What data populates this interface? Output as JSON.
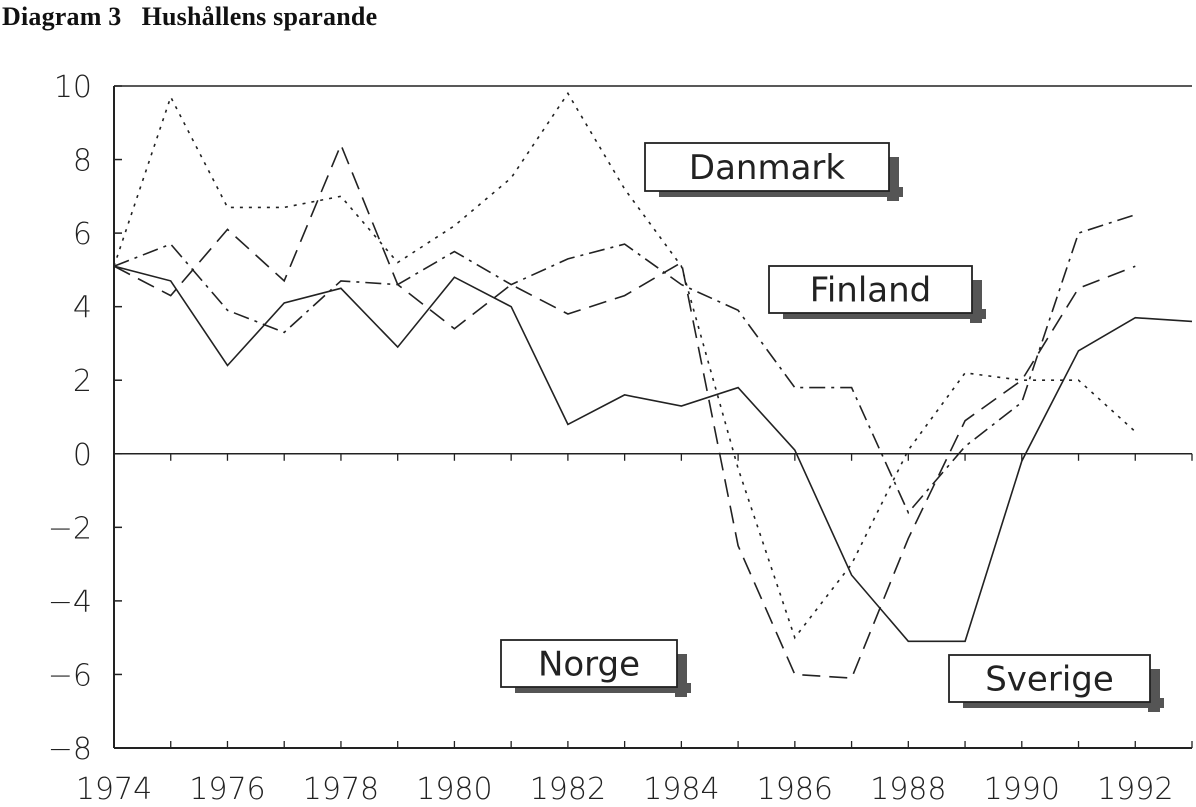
{
  "title": "Diagram 3   Hushållens sparande",
  "chart_data": {
    "type": "line",
    "title": "Diagram 3   Hushållens sparande",
    "xlabel": "",
    "ylabel": "",
    "x": [
      1974,
      1975,
      1976,
      1977,
      1978,
      1979,
      1980,
      1981,
      1982,
      1983,
      1984,
      1985,
      1986,
      1987,
      1988,
      1989,
      1990,
      1991,
      1992
    ],
    "xlim": [
      1974,
      1993
    ],
    "ylim": [
      -8,
      10
    ],
    "x_ticks": [
      "1974",
      "1976",
      "1978",
      "1980",
      "1982",
      "1984",
      "1986",
      "1988",
      "1990",
      "1992"
    ],
    "y_ticks": [
      "10",
      "8",
      "6",
      "4",
      "2",
      "0",
      "−2",
      "−4",
      "−6",
      "−8"
    ],
    "grid": false,
    "series": [
      {
        "name": "Norge",
        "style": "solid",
        "values": [
          5.1,
          4.7,
          2.4,
          4.1,
          4.5,
          2.9,
          4.8,
          4.0,
          0.8,
          1.6,
          1.3,
          1.8,
          0.1,
          -3.3,
          -5.1,
          -5.1,
          -0.2,
          2.8,
          3.7,
          3.6
        ],
        "x": [
          1974,
          1975,
          1976,
          1977,
          1978,
          1979,
          1980,
          1981,
          1982,
          1983,
          1984,
          1985,
          1986,
          1987,
          1988,
          1989,
          1990,
          1991,
          1992,
          1993
        ]
      },
      {
        "name": "Finland",
        "style": "dashed",
        "values": [
          5.1,
          4.3,
          6.1,
          4.7,
          8.4,
          4.6,
          3.4,
          4.6,
          3.8,
          4.3,
          5.2,
          -2.5,
          -6.0,
          -6.1,
          -2.3,
          0.9,
          2.0,
          4.5,
          5.1
        ],
        "x": [
          1974,
          1975,
          1976,
          1977,
          1978,
          1979,
          1980,
          1981,
          1982,
          1983,
          1984,
          1985,
          1986,
          1987,
          1988,
          1989,
          1990,
          1991,
          1992
        ]
      },
      {
        "name": "Danmark",
        "style": "dotted",
        "values": [
          5.1,
          9.7,
          6.7,
          6.7,
          7.0,
          5.2,
          6.2,
          7.5,
          9.8,
          7.2,
          5.1,
          -0.4,
          -5.0,
          -3.0,
          0.1,
          2.2,
          2.0,
          2.0,
          0.6
        ],
        "x": [
          1974,
          1975,
          1976,
          1977,
          1978,
          1979,
          1980,
          1981,
          1982,
          1983,
          1984,
          1985,
          1986,
          1987,
          1988,
          1989,
          1990,
          1991,
          1992
        ]
      },
      {
        "name": "Sverige",
        "style": "dashdot",
        "values": [
          5.1,
          5.7,
          3.9,
          3.3,
          4.7,
          4.6,
          5.5,
          4.6,
          5.3,
          5.7,
          4.6,
          3.9,
          1.8,
          1.8,
          -1.6,
          0.2,
          1.4,
          6.0,
          6.5
        ],
        "x": [
          1974,
          1975,
          1976,
          1977,
          1978,
          1979,
          1980,
          1981,
          1982,
          1983,
          1984,
          1985,
          1986,
          1987,
          1988,
          1989,
          1990,
          1991,
          1992
        ]
      }
    ],
    "labels": [
      {
        "text": "Danmark"
      },
      {
        "text": "Finland"
      },
      {
        "text": "Norge"
      },
      {
        "text": "Sverige"
      }
    ],
    "colors": {
      "line": "#222222",
      "axis": "#222222",
      "label_shadow": "#555555"
    }
  }
}
